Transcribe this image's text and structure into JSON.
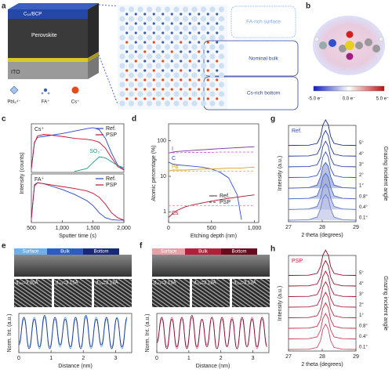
{
  "figure": {
    "panel_labels": [
      "a",
      "b",
      "e",
      "f"
    ],
    "a": {
      "layers": [
        "C₆₀/BCP",
        "Perovskite",
        "ITO"
      ],
      "legend": [
        "PbI₆⁴⁻",
        "FA⁺",
        "Cs⁺"
      ],
      "regions": [
        "FA-rich surface",
        "Nominal bulk",
        "Cs-rich bottom"
      ]
    },
    "b": {
      "colorbar": [
        "-5.0 e⁻",
        "0.0 e⁻",
        "5.0 e⁻"
      ]
    },
    "e": {
      "zones": [
        "Surface",
        "Bulk",
        "Bottom"
      ],
      "spacings": [
        "d₁₁₁=3.20Å",
        "d₁₁₁=3.15Å",
        "d₁₁₁=3.13Å"
      ]
    },
    "f": {
      "zones": [
        "Surface",
        "Bulk",
        "Bottom"
      ],
      "spacings": [
        "d₁₁₁=3.13Å",
        "d₁₁₁=3.13Å",
        "d₁₁₁=3.13Å"
      ]
    }
  },
  "chart_data": [
    {
      "type": "line",
      "panel": "c",
      "label": "Cs⁺",
      "ylabel": "Intensity (counts)",
      "x": [
        500,
        550,
        600,
        700,
        800,
        1000,
        1200,
        1400,
        1500,
        1600,
        1700,
        1800,
        1900,
        2000
      ],
      "xlim": [
        500,
        2000
      ],
      "ylim": [
        0,
        1
      ],
      "series": [
        {
          "name": "Ref.",
          "color": "#2a45c8",
          "values": [
            0.08,
            0.62,
            0.72,
            0.74,
            0.76,
            0.8,
            0.85,
            0.9,
            0.92,
            0.88,
            0.7,
            0.4,
            0.15,
            0.06
          ]
        },
        {
          "name": "PSP",
          "color": "#c8102e",
          "values": [
            0.08,
            0.6,
            0.75,
            0.78,
            0.77,
            0.74,
            0.7,
            0.68,
            0.66,
            0.62,
            0.5,
            0.3,
            0.12,
            0.05
          ]
        },
        {
          "name": "SO₃⁻",
          "color": "#1f9a8a",
          "in_legend": false,
          "values": [
            null,
            null,
            null,
            null,
            null,
            null,
            0.02,
            0.08,
            0.2,
            0.32,
            0.3,
            0.22,
            0.14,
            0.1
          ]
        }
      ]
    },
    {
      "type": "line",
      "label": "FA⁺",
      "xlabel": "Sputter time (s)",
      "x": [
        500,
        550,
        600,
        700,
        800,
        1000,
        1200,
        1400,
        1500,
        1600,
        1700,
        1800,
        1900,
        2000
      ],
      "xlim": [
        500,
        2000
      ],
      "ylim": [
        0,
        1
      ],
      "xticks": [
        500,
        {
          "value": 1000,
          "label": "1,000"
        },
        {
          "value": 1500,
          "label": "1,500"
        },
        {
          "value": 2000,
          "label": "2,000"
        }
      ],
      "series": [
        {
          "name": "Ref.",
          "color": "#2a45c8",
          "values": [
            0.08,
            0.78,
            0.82,
            0.8,
            0.76,
            0.68,
            0.58,
            0.45,
            0.35,
            0.2,
            0.1,
            0.06,
            0.05,
            0.05
          ]
        },
        {
          "name": "PSP",
          "color": "#c8102e",
          "values": [
            0.08,
            0.75,
            0.82,
            0.8,
            0.78,
            0.74,
            0.7,
            0.65,
            0.6,
            0.52,
            0.38,
            0.2,
            0.1,
            0.05
          ]
        }
      ]
    },
    {
      "type": "line",
      "panel": "d",
      "log_y": true,
      "xlabel": "Etching depth (nm)",
      "ylabel": "Atomic percentage (%)",
      "x": [
        0,
        50,
        100,
        200,
        300,
        400,
        500,
        600,
        700,
        800,
        850,
        900,
        1000
      ],
      "xlim": [
        0,
        1050
      ],
      "ylim": [
        0.5,
        300
      ],
      "xticks": [
        0,
        500,
        {
          "value": 1000,
          "label": "1,000"
        }
      ],
      "yticks": [
        1,
        10,
        100
      ],
      "legend": [
        {
          "label": "Ref.",
          "dash": false
        },
        {
          "label": "PSP",
          "dash": true
        }
      ],
      "series": [
        {
          "name": "I",
          "color": "#7b2fa8",
          "dash": false,
          "values": [
            45,
            48,
            50,
            52,
            54,
            56,
            58,
            60,
            62,
            64,
            65,
            66,
            68
          ]
        },
        {
          "color": "#d36bd8",
          "dash": true,
          "values": [
            45,
            46,
            46,
            47,
            47,
            47,
            47,
            48,
            48,
            48,
            48,
            48,
            48
          ]
        },
        {
          "name": "C",
          "color": "#2b4fd8",
          "dash": false,
          "values": [
            25,
            22,
            21,
            20,
            19,
            18,
            16,
            13,
            9,
            3,
            0.6,
            null,
            null
          ]
        },
        {
          "name": "Pb",
          "color": "#e0a020",
          "dash": false,
          "values": [
            14,
            15,
            15,
            15,
            15.5,
            16,
            16,
            16.5,
            17,
            17,
            17,
            17.5,
            18
          ]
        },
        {
          "color": "#e7b96a",
          "dash": true,
          "values": [
            14,
            14,
            14,
            14,
            14,
            14,
            14,
            14,
            14,
            14,
            14,
            14,
            14
          ]
        },
        {
          "name": "Cs",
          "color": "#b0102a",
          "dash": false,
          "values": [
            0.7,
            0.9,
            1.1,
            1.4,
            1.6,
            1.8,
            2.0,
            2.2,
            2.4,
            2.6,
            2.7,
            2.8,
            3.0
          ]
        },
        {
          "color": "#e58aa0",
          "dash": true,
          "values": [
            1.5,
            1.5,
            1.5,
            1.5,
            1.5,
            1.5,
            1.5,
            1.5,
            1.5,
            1.5,
            1.5,
            1.5,
            1.5
          ]
        }
      ]
    },
    {
      "type": "ridgeline",
      "panel": "g",
      "label": "Ref.",
      "label_color": "#2a45c8",
      "xlabel": "2 theta (degrees)",
      "ylabel": "Intensity (a.u.)",
      "y2label": "Grazing incident angle",
      "x": [
        27,
        27.6,
        27.85,
        27.95,
        28.02,
        28.1,
        28.18,
        28.25,
        28.35,
        28.6,
        29
      ],
      "xlim": [
        27,
        29
      ],
      "xticks": [
        27,
        28,
        29
      ],
      "series": [
        {
          "name": "5°",
          "color": "#1b2f8a",
          "values": [
            0,
            0.01,
            0.08,
            0.35,
            0.8,
            1,
            0.8,
            0.35,
            0.08,
            0.01,
            0
          ]
        },
        {
          "name": "4°",
          "color": "#23399a",
          "values": [
            0,
            0.01,
            0.08,
            0.35,
            0.8,
            1,
            0.8,
            0.35,
            0.08,
            0.01,
            0
          ]
        },
        {
          "name": "3°",
          "color": "#2b44aa",
          "values": [
            0,
            0.01,
            0.08,
            0.35,
            0.8,
            1,
            0.8,
            0.35,
            0.08,
            0.01,
            0
          ]
        },
        {
          "name": "2°",
          "color": "#3450ba",
          "values": [
            0,
            0.01,
            0.08,
            0.35,
            0.8,
            1,
            0.8,
            0.35,
            0.08,
            0.01,
            0
          ]
        },
        {
          "name": "1°",
          "color": "#3d5ac4",
          "fill": "#8e9bd0",
          "values": [
            0,
            0.02,
            0.12,
            0.45,
            0.85,
            1,
            0.85,
            0.45,
            0.12,
            0.02,
            0
          ]
        },
        {
          "name": "0.8°",
          "color": "#4a66cc",
          "fill": "#9aa6d6",
          "values": [
            0,
            0.02,
            0.12,
            0.45,
            0.85,
            1,
            0.85,
            0.45,
            0.12,
            0.02,
            0
          ]
        },
        {
          "name": "0.4°",
          "color": "#5a74d4",
          "fill": "#a7b1dc",
          "values": [
            0,
            0.02,
            0.12,
            0.45,
            0.85,
            1,
            0.85,
            0.45,
            0.12,
            0.02,
            0
          ]
        },
        {
          "name": "0.1°",
          "color": "#6a82da",
          "fill": "#b4bde2",
          "values": [
            0,
            0.02,
            0.12,
            0.45,
            0.85,
            1,
            0.85,
            0.45,
            0.12,
            0.02,
            0
          ]
        }
      ]
    },
    {
      "type": "ridgeline",
      "panel": "h",
      "label": "PSP",
      "label_color": "#c8102e",
      "xlabel": "2 theta (degrees)",
      "ylabel": "Intensity (a.u.)",
      "y2label": "Grazing incident angle",
      "x": [
        27,
        27.6,
        27.85,
        27.95,
        28.02,
        28.1,
        28.18,
        28.25,
        28.35,
        28.6,
        29
      ],
      "xlim": [
        27,
        29
      ],
      "xticks": [
        27,
        28,
        29
      ],
      "series": [
        {
          "name": "5°",
          "color": "#8a0a22",
          "values": [
            0,
            0.01,
            0.08,
            0.35,
            0.8,
            1,
            0.8,
            0.35,
            0.08,
            0.01,
            0
          ]
        },
        {
          "name": "4°",
          "color": "#960e28",
          "values": [
            0,
            0.01,
            0.08,
            0.35,
            0.8,
            1,
            0.8,
            0.35,
            0.08,
            0.01,
            0
          ]
        },
        {
          "name": "3°",
          "color": "#a2122e",
          "values": [
            0,
            0.01,
            0.08,
            0.35,
            0.8,
            1,
            0.8,
            0.35,
            0.08,
            0.01,
            0
          ]
        },
        {
          "name": "2°",
          "color": "#ae1834",
          "values": [
            0,
            0.01,
            0.08,
            0.35,
            0.8,
            1,
            0.8,
            0.35,
            0.08,
            0.01,
            0
          ]
        },
        {
          "name": "1°",
          "color": "#ba203c",
          "values": [
            0,
            0.01,
            0.08,
            0.35,
            0.8,
            1,
            0.8,
            0.35,
            0.08,
            0.01,
            0
          ]
        },
        {
          "name": "0.8°",
          "color": "#c42a46",
          "values": [
            0,
            0.01,
            0.08,
            0.35,
            0.8,
            1,
            0.8,
            0.35,
            0.08,
            0.01,
            0
          ]
        },
        {
          "name": "0.4°",
          "color": "#cc3652",
          "values": [
            0,
            0.01,
            0.08,
            0.35,
            0.8,
            1,
            0.8,
            0.35,
            0.08,
            0.01,
            0
          ]
        },
        {
          "name": "0.1°",
          "color": "#d4445e",
          "values": [
            0,
            0.01,
            0.08,
            0.35,
            0.8,
            1,
            0.8,
            0.35,
            0.08,
            0.01,
            0
          ]
        }
      ]
    },
    {
      "type": "line",
      "smooth": true,
      "xlabel": "Distance (nm)",
      "ylabel": "Norm. Int. (a.u.)",
      "x": [
        0,
        0.16,
        0.32,
        0.48,
        0.64,
        0.8,
        0.96,
        1.12,
        1.28,
        1.44,
        1.6,
        1.76,
        1.92,
        2.08,
        2.24,
        2.4,
        2.56,
        2.72,
        2.88,
        3.04,
        3.2,
        3.36
      ],
      "xlim": [
        0,
        3.5
      ],
      "ylim": [
        0,
        1
      ],
      "xticks": [
        0,
        1,
        2,
        3
      ],
      "series": [
        {
          "color": "#5fa8e0",
          "values": [
            0.25,
            0.85,
            0.15,
            0.9,
            0.1,
            0.9,
            0.15,
            0.85,
            0.15,
            0.9,
            0.1,
            0.85,
            0.15,
            0.9,
            0.1,
            0.9,
            0.15,
            0.85,
            0.15,
            0.9,
            0.1,
            0.85
          ]
        },
        {
          "color": "#1f3a9a",
          "values": [
            0.2,
            0.9,
            0.1,
            0.85,
            0.15,
            0.95,
            0.1,
            0.9,
            0.2,
            0.85,
            0.15,
            0.9,
            0.1,
            0.95,
            0.15,
            0.85,
            0.2,
            0.9,
            0.1,
            0.88,
            0.15,
            0.9
          ]
        }
      ]
    },
    {
      "type": "line",
      "smooth": true,
      "xlabel": "Distance (nm)",
      "ylabel": "Norm. Int. (a.u.)",
      "x": [
        0,
        0.157,
        0.313,
        0.47,
        0.626,
        0.783,
        0.939,
        1.096,
        1.252,
        1.409,
        1.565,
        1.722,
        1.878,
        2.035,
        2.191,
        2.348,
        2.504,
        2.661,
        2.817,
        2.974,
        3.13,
        3.287,
        3.443
      ],
      "xlim": [
        0,
        3.5
      ],
      "ylim": [
        0,
        1
      ],
      "xticks": [
        0,
        1,
        2,
        3
      ],
      "series": [
        {
          "color": "#e07090",
          "values": [
            0.3,
            0.85,
            0.15,
            0.9,
            0.1,
            0.85,
            0.15,
            0.9,
            0.1,
            0.85,
            0.2,
            0.9,
            0.1,
            0.85,
            0.15,
            0.9,
            0.1,
            0.85,
            0.15,
            0.9,
            0.1,
            0.85,
            0.2
          ]
        },
        {
          "color": "#8a1030",
          "values": [
            0.25,
            0.9,
            0.1,
            0.85,
            0.15,
            0.9,
            0.1,
            0.95,
            0.15,
            0.85,
            0.15,
            0.9,
            0.1,
            0.9,
            0.15,
            0.85,
            0.1,
            0.9,
            0.15,
            0.85,
            0.15,
            0.9,
            0.15
          ]
        }
      ]
    }
  ]
}
